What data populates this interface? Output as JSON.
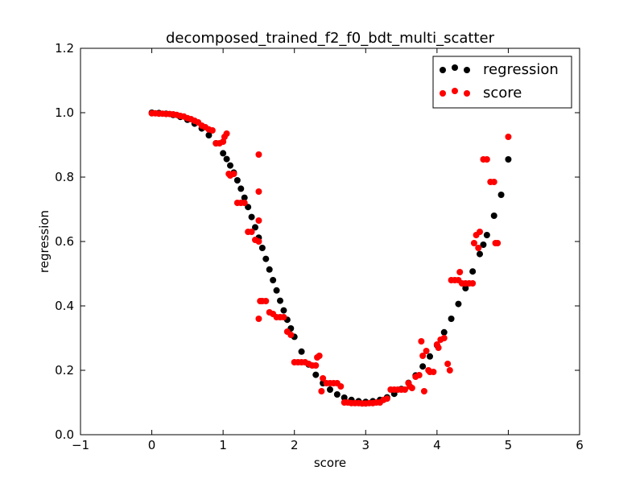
{
  "chart_data": {
    "type": "scatter",
    "title": "decomposed_trained_f2_f0_bdt_multi_scatter",
    "xlabel": "score",
    "ylabel": "regression",
    "xlim": [
      -1,
      6
    ],
    "ylim": [
      0.0,
      1.2
    ],
    "xticks": [
      -1,
      0,
      1,
      2,
      3,
      4,
      5,
      6
    ],
    "xtick_labels": [
      "−1",
      "0",
      "1",
      "2",
      "3",
      "4",
      "5",
      "6"
    ],
    "yticks": [
      0.0,
      0.2,
      0.4,
      0.6,
      0.8,
      1.0,
      1.2
    ],
    "ytick_labels": [
      "0.0",
      "0.2",
      "0.4",
      "0.6",
      "0.8",
      "1.0",
      "1.2"
    ],
    "grid": false,
    "legend_position": "top-right",
    "series": [
      {
        "name": "regression",
        "color": "#000000",
        "points": [
          [
            0.0,
            1.0
          ],
          [
            0.1,
            0.999
          ],
          [
            0.2,
            0.997
          ],
          [
            0.3,
            0.993
          ],
          [
            0.4,
            0.987
          ],
          [
            0.5,
            0.978
          ],
          [
            0.6,
            0.966
          ],
          [
            0.7,
            0.951
          ],
          [
            0.8,
            0.93
          ],
          [
            0.9,
            0.905
          ],
          [
            1.0,
            0.874
          ],
          [
            1.05,
            0.856
          ],
          [
            1.1,
            0.836
          ],
          [
            1.15,
            0.814
          ],
          [
            1.2,
            0.79
          ],
          [
            1.25,
            0.764
          ],
          [
            1.3,
            0.736
          ],
          [
            1.35,
            0.707
          ],
          [
            1.4,
            0.676
          ],
          [
            1.45,
            0.644
          ],
          [
            1.5,
            0.612
          ],
          [
            1.55,
            0.58
          ],
          [
            1.6,
            0.546
          ],
          [
            1.65,
            0.513
          ],
          [
            1.7,
            0.48
          ],
          [
            1.75,
            0.448
          ],
          [
            1.8,
            0.416
          ],
          [
            1.85,
            0.386
          ],
          [
            1.9,
            0.357
          ],
          [
            1.95,
            0.33
          ],
          [
            2.0,
            0.304
          ],
          [
            2.1,
            0.258
          ],
          [
            2.2,
            0.218
          ],
          [
            2.3,
            0.186
          ],
          [
            2.4,
            0.16
          ],
          [
            2.5,
            0.14
          ],
          [
            2.6,
            0.125
          ],
          [
            2.7,
            0.115
          ],
          [
            2.8,
            0.108
          ],
          [
            2.9,
            0.104
          ],
          [
            3.0,
            0.102
          ],
          [
            3.1,
            0.104
          ],
          [
            3.2,
            0.108
          ],
          [
            3.3,
            0.116
          ],
          [
            3.4,
            0.127
          ],
          [
            3.5,
            0.142
          ],
          [
            3.6,
            0.161
          ],
          [
            3.7,
            0.184
          ],
          [
            3.8,
            0.212
          ],
          [
            3.9,
            0.243
          ],
          [
            4.0,
            0.278
          ],
          [
            4.1,
            0.318
          ],
          [
            4.2,
            0.36
          ],
          [
            4.3,
            0.406
          ],
          [
            4.4,
            0.455
          ],
          [
            4.5,
            0.507
          ],
          [
            4.6,
            0.561
          ],
          [
            4.65,
            0.59
          ],
          [
            4.7,
            0.62
          ],
          [
            4.8,
            0.68
          ],
          [
            4.9,
            0.745
          ],
          [
            5.0,
            0.855
          ]
        ]
      },
      {
        "name": "score",
        "color": "#ff0000",
        "points": [
          [
            0.0,
            0.998
          ],
          [
            0.05,
            0.998
          ],
          [
            0.1,
            0.997
          ],
          [
            0.15,
            0.997
          ],
          [
            0.2,
            0.996
          ],
          [
            0.25,
            0.996
          ],
          [
            0.3,
            0.995
          ],
          [
            0.35,
            0.993
          ],
          [
            0.4,
            0.99
          ],
          [
            0.45,
            0.988
          ],
          [
            0.5,
            0.983
          ],
          [
            0.55,
            0.98
          ],
          [
            0.6,
            0.975
          ],
          [
            0.65,
            0.97
          ],
          [
            0.7,
            0.96
          ],
          [
            0.75,
            0.955
          ],
          [
            0.8,
            0.948
          ],
          [
            0.85,
            0.945
          ],
          [
            0.9,
            0.905
          ],
          [
            0.95,
            0.905
          ],
          [
            1.0,
            0.91
          ],
          [
            1.02,
            0.925
          ],
          [
            1.05,
            0.935
          ],
          [
            1.08,
            0.81
          ],
          [
            1.1,
            0.805
          ],
          [
            1.15,
            0.81
          ],
          [
            1.2,
            0.72
          ],
          [
            1.25,
            0.72
          ],
          [
            1.3,
            0.72
          ],
          [
            1.35,
            0.63
          ],
          [
            1.4,
            0.63
          ],
          [
            1.45,
            0.605
          ],
          [
            1.5,
            0.6
          ],
          [
            1.5,
            0.87
          ],
          [
            1.5,
            0.755
          ],
          [
            1.5,
            0.665
          ],
          [
            1.5,
            0.36
          ],
          [
            1.52,
            0.415
          ],
          [
            1.55,
            0.415
          ],
          [
            1.6,
            0.415
          ],
          [
            1.65,
            0.38
          ],
          [
            1.7,
            0.375
          ],
          [
            1.75,
            0.365
          ],
          [
            1.8,
            0.365
          ],
          [
            1.85,
            0.365
          ],
          [
            1.9,
            0.32
          ],
          [
            1.95,
            0.31
          ],
          [
            2.0,
            0.225
          ],
          [
            2.05,
            0.225
          ],
          [
            2.1,
            0.225
          ],
          [
            2.15,
            0.225
          ],
          [
            2.2,
            0.22
          ],
          [
            2.25,
            0.215
          ],
          [
            2.3,
            0.215
          ],
          [
            2.32,
            0.24
          ],
          [
            2.35,
            0.245
          ],
          [
            2.38,
            0.135
          ],
          [
            2.4,
            0.175
          ],
          [
            2.45,
            0.16
          ],
          [
            2.5,
            0.16
          ],
          [
            2.55,
            0.16
          ],
          [
            2.6,
            0.16
          ],
          [
            2.65,
            0.15
          ],
          [
            2.7,
            0.1
          ],
          [
            2.75,
            0.1
          ],
          [
            2.8,
            0.098
          ],
          [
            2.85,
            0.098
          ],
          [
            2.9,
            0.098
          ],
          [
            2.95,
            0.097
          ],
          [
            3.0,
            0.097
          ],
          [
            3.05,
            0.098
          ],
          [
            3.1,
            0.098
          ],
          [
            3.15,
            0.1
          ],
          [
            3.2,
            0.1
          ],
          [
            3.25,
            0.108
          ],
          [
            3.3,
            0.112
          ],
          [
            3.35,
            0.14
          ],
          [
            3.4,
            0.14
          ],
          [
            3.45,
            0.14
          ],
          [
            3.5,
            0.14
          ],
          [
            3.55,
            0.14
          ],
          [
            3.6,
            0.16
          ],
          [
            3.62,
            0.15
          ],
          [
            3.65,
            0.145
          ],
          [
            3.7,
            0.18
          ],
          [
            3.75,
            0.185
          ],
          [
            3.78,
            0.29
          ],
          [
            3.8,
            0.245
          ],
          [
            3.82,
            0.135
          ],
          [
            3.85,
            0.26
          ],
          [
            3.88,
            0.2
          ],
          [
            3.9,
            0.195
          ],
          [
            3.95,
            0.195
          ],
          [
            4.0,
            0.28
          ],
          [
            4.02,
            0.27
          ],
          [
            4.05,
            0.295
          ],
          [
            4.1,
            0.3
          ],
          [
            4.15,
            0.22
          ],
          [
            4.18,
            0.2
          ],
          [
            4.2,
            0.48
          ],
          [
            4.25,
            0.48
          ],
          [
            4.3,
            0.48
          ],
          [
            4.32,
            0.505
          ],
          [
            4.35,
            0.47
          ],
          [
            4.4,
            0.47
          ],
          [
            4.45,
            0.47
          ],
          [
            4.5,
            0.47
          ],
          [
            4.52,
            0.595
          ],
          [
            4.55,
            0.62
          ],
          [
            4.58,
            0.58
          ],
          [
            4.6,
            0.63
          ],
          [
            4.65,
            0.855
          ],
          [
            4.7,
            0.855
          ],
          [
            4.75,
            0.785
          ],
          [
            4.8,
            0.785
          ],
          [
            4.82,
            0.595
          ],
          [
            4.85,
            0.595
          ],
          [
            5.0,
            0.925
          ]
        ]
      }
    ]
  }
}
